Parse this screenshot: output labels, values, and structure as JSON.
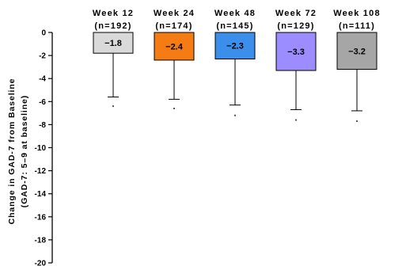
{
  "chart_data": {
    "type": "bar",
    "ylabel": [
      "Change in GAD-7 from Baseline",
      "(GAD-7: 5–9 at baseline)"
    ],
    "ylim": [
      -20,
      0
    ],
    "ytick_step": 2,
    "ytick_labels": [
      "0",
      "-2",
      "-4",
      "-6",
      "-8",
      "-10",
      "-12",
      "-14",
      "-16",
      "-18",
      "-20"
    ],
    "grid": false,
    "error_direction": "below",
    "categories": [
      "Week 12",
      "Week 24",
      "Week 48",
      "Week 72",
      "Week 108"
    ],
    "n_labels": [
      "(n=192)",
      "(n=174)",
      "(n=145)",
      "(n=129)",
      "(n=111)"
    ],
    "values": [
      -1.8,
      -2.4,
      -2.3,
      -3.3,
      -3.2
    ],
    "value_labels": [
      "−1.8",
      "−2.4",
      "−2.3",
      "−3.3",
      "−3.2"
    ],
    "error_lower": [
      -5.6,
      -5.8,
      -6.3,
      -6.7,
      -6.8
    ],
    "marker_values": [
      -6.4,
      -6.6,
      -7.2,
      -7.6,
      -7.7
    ],
    "colors": [
      "#D9D9D9",
      "#F57C14",
      "#3B8FEB",
      "#9B8CFF",
      "#A6A6A6"
    ]
  }
}
